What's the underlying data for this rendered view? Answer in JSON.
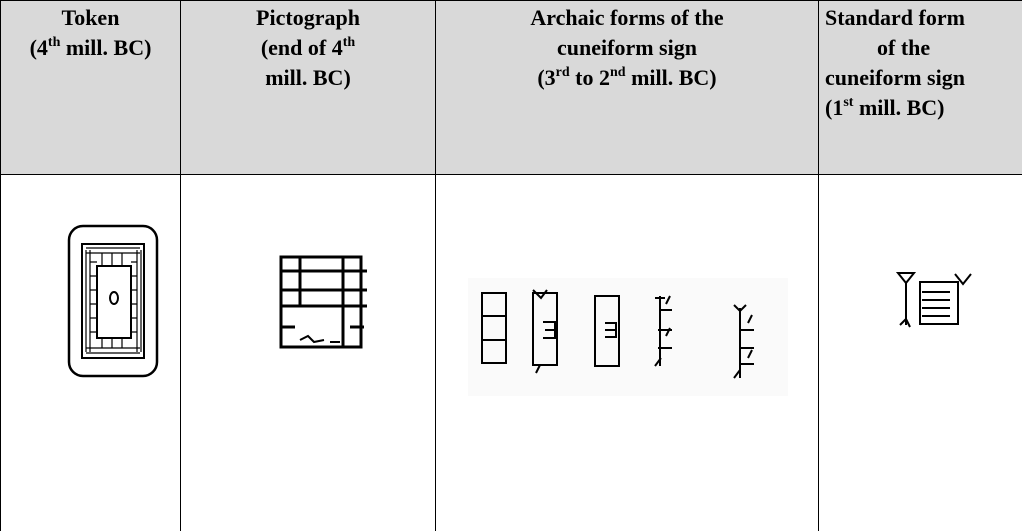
{
  "header": {
    "columns": [
      [
        "Token",
        "(4",
        "th",
        " mill. BC)"
      ],
      [
        "Pictograph",
        "(end of 4",
        "th",
        "mill. BC)"
      ],
      [
        "Archaic forms of the",
        "cuneiform sign",
        "(3",
        "rd",
        " to 2",
        "nd",
        " mill. BC)"
      ],
      [
        "Standard form",
        "of the",
        "cuneiform sign",
        "(1",
        "st",
        " mill. BC)"
      ]
    ]
  }
}
